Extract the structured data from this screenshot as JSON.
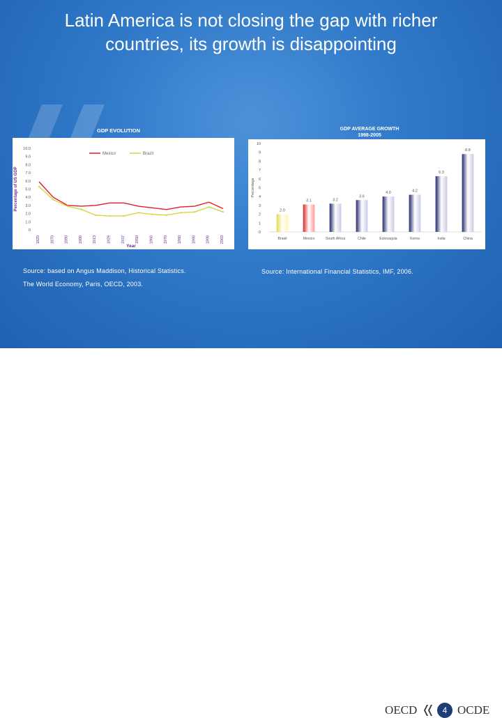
{
  "slide": {
    "title_line1": "Latin America is not closing the gap with richer",
    "title_line2": "countries, its growth is disappointing",
    "source_left_line1": "Source:  based on Angus Maddison, Historical Statistics.",
    "source_left_line2": "The World Economy, Paris, OECD, 2003.",
    "source_right": "Source: International Financial Statistics, IMF, 2006."
  },
  "footer": {
    "logo_left": "OECD",
    "logo_right": "OCDE",
    "page_number": "4"
  },
  "colors": {
    "mexico": "#e31e24",
    "brazil": "#d6d63a",
    "accent_blue": "#2f78c8"
  },
  "chart_data": [
    {
      "type": "line",
      "title": "GDP EVOLUTION",
      "xlabel": "Year",
      "ylabel": "Percentage of US GDP",
      "x": [
        "1820",
        "1870",
        "1890",
        "1900",
        "1913",
        "1929",
        "1937",
        "1950",
        "1960",
        "1970",
        "1980",
        "1990",
        "1998",
        "2003"
      ],
      "ylim": [
        0,
        10
      ],
      "yticks": [
        "0",
        "1.0",
        "2.0",
        "3.0",
        "4.0",
        "5.0",
        "6.0",
        "7.0",
        "8.0",
        "9.0",
        "10.0"
      ],
      "legend": "top",
      "series": [
        {
          "name": "Mexico",
          "values": [
            5.9,
            4.0,
            3.0,
            2.9,
            3.0,
            3.3,
            3.3,
            2.9,
            2.7,
            2.5,
            2.8,
            2.9,
            3.4,
            2.6
          ]
        },
        {
          "name": "Brazil",
          "values": [
            5.3,
            3.7,
            2.9,
            2.5,
            1.8,
            1.7,
            1.7,
            2.1,
            1.9,
            1.8,
            2.1,
            2.2,
            2.8,
            2.2
          ]
        }
      ]
    },
    {
      "type": "bar",
      "title": "GDP AVERAGE GROWTH",
      "subtitle": "1998-2005",
      "ylabel": "Percentage",
      "ylim": [
        0,
        10
      ],
      "yticks": [
        "0",
        "1",
        "2",
        "3",
        "4",
        "5",
        "6",
        "7",
        "8",
        "9",
        "10"
      ],
      "categories": [
        "Brasil",
        "Mexico",
        "South Africa",
        "Chile",
        "Eslovaquia",
        "Korea",
        "India",
        "China"
      ],
      "values": [
        2.0,
        3.1,
        3.2,
        3.6,
        4.0,
        4.2,
        6.3,
        8.8
      ],
      "labels": [
        "2.0",
        "3.1",
        "3.2",
        "3.6",
        "4.0",
        "4.2",
        "6.3",
        "8.8"
      ]
    }
  ]
}
